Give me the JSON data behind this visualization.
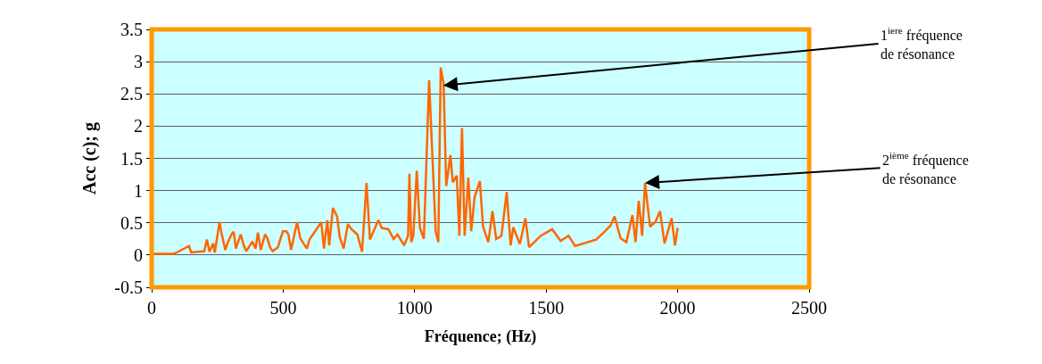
{
  "chart_data": {
    "type": "line",
    "xlabel": "Fréquence; (Hz)",
    "ylabel": "Acc (c); g",
    "x": [
      0,
      85,
      100,
      142,
      150,
      200,
      210,
      220,
      234,
      240,
      258,
      265,
      280,
      290,
      305,
      312,
      320,
      339,
      350,
      360,
      383,
      395,
      404,
      415,
      431,
      440,
      450,
      460,
      480,
      499,
      512,
      520,
      530,
      553,
      565,
      590,
      600,
      645,
      655,
      668,
      675,
      689,
      705,
      715,
      730,
      746,
      760,
      782,
      800,
      817,
      830,
      862,
      875,
      900,
      920,
      935,
      960,
      975,
      980,
      987,
      995,
      1008,
      1020,
      1035,
      1055,
      1068,
      1080,
      1090,
      1099,
      1110,
      1120,
      1136,
      1145,
      1160,
      1170,
      1180,
      1190,
      1204,
      1215,
      1228,
      1248,
      1260,
      1280,
      1296,
      1310,
      1330,
      1350,
      1365,
      1375,
      1400,
      1421,
      1435,
      1480,
      1523,
      1555,
      1585,
      1610,
      1650,
      1690,
      1724,
      1745,
      1760,
      1783,
      1805,
      1828,
      1840,
      1852,
      1865,
      1876,
      1895,
      1915,
      1933,
      1950,
      1977,
      1990,
      2000
    ],
    "series": [
      {
        "color": "#ff6600",
        "values": [
          0.02,
          0.02,
          0.05,
          0.14,
          0.04,
          0.06,
          0.24,
          0.05,
          0.18,
          0.04,
          0.51,
          0.35,
          0.08,
          0.2,
          0.33,
          0.36,
          0.1,
          0.32,
          0.15,
          0.06,
          0.21,
          0.1,
          0.35,
          0.08,
          0.32,
          0.26,
          0.12,
          0.06,
          0.12,
          0.37,
          0.37,
          0.32,
          0.08,
          0.51,
          0.26,
          0.1,
          0.24,
          0.51,
          0.1,
          0.54,
          0.15,
          0.73,
          0.6,
          0.28,
          0.1,
          0.48,
          0.4,
          0.32,
          0.05,
          1.12,
          0.24,
          0.54,
          0.42,
          0.4,
          0.25,
          0.32,
          0.15,
          0.3,
          1.26,
          0.2,
          0.3,
          1.31,
          0.42,
          0.25,
          2.71,
          1.48,
          0.36,
          0.2,
          2.91,
          2.66,
          1.07,
          1.55,
          1.13,
          1.23,
          0.3,
          1.97,
          0.3,
          1.2,
          0.37,
          0.9,
          1.15,
          0.44,
          0.2,
          0.68,
          0.25,
          0.3,
          0.98,
          0.15,
          0.43,
          0.17,
          0.57,
          0.12,
          0.3,
          0.4,
          0.22,
          0.3,
          0.14,
          0.19,
          0.24,
          0.37,
          0.46,
          0.6,
          0.26,
          0.2,
          0.62,
          0.2,
          0.84,
          0.3,
          1.12,
          0.44,
          0.51,
          0.68,
          0.18,
          0.57,
          0.15,
          0.42
        ]
      }
    ],
    "xlim": [
      0,
      2500
    ],
    "xticks": [
      0,
      500,
      1000,
      1500,
      2000,
      2500
    ],
    "ylim": [
      -0.5,
      3.5
    ],
    "yticks": [
      -0.5,
      0,
      0.5,
      1,
      1.5,
      2,
      2.5,
      3,
      3.5
    ],
    "grid": "y",
    "marker": "none",
    "line_style": "solid",
    "annotations": [
      {
        "text": "1$^{iere}$ fréquence\nde résonance",
        "x": 1109,
        "y": 2.63
      },
      {
        "text": "2$^{ième}$ fréquence\nde résonance",
        "x": 1876,
        "y": 1.12
      }
    ]
  }
}
